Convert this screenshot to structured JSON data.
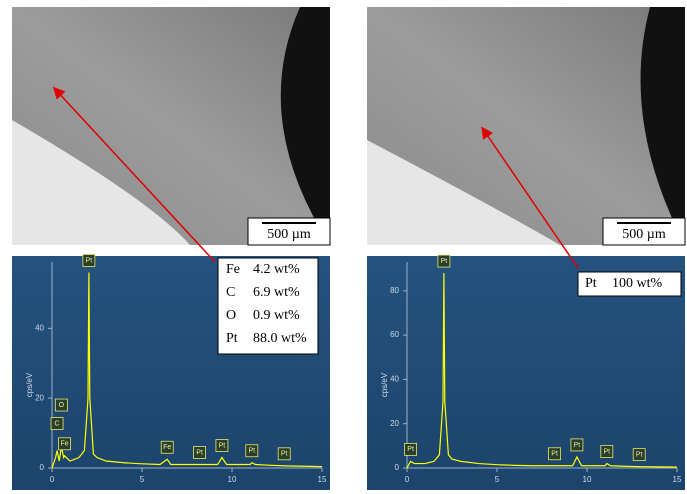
{
  "images": [
    {
      "scale_bar": "500 µm"
    },
    {
      "scale_bar": "500 µm"
    }
  ],
  "compositions": [
    [
      [
        "Fe",
        "4.2 wt%"
      ],
      [
        "C",
        "6.9 wt%"
      ],
      [
        "O",
        "0.9 wt%"
      ],
      [
        "Pt",
        "88.0 wt%"
      ]
    ],
    [
      [
        "Pt",
        "100 wt%"
      ]
    ]
  ],
  "chart_data": [
    {
      "type": "line",
      "ylabel": "cps/eV",
      "color": "#ffff00",
      "x": [
        0,
        0.2,
        0.28,
        0.4,
        0.52,
        0.65,
        0.7,
        1.0,
        1.5,
        1.8,
        2.0,
        2.05,
        2.1,
        2.3,
        2.5,
        3,
        4,
        5,
        6,
        6.4,
        6.6,
        7,
        8,
        9.2,
        9.44,
        9.7,
        10,
        11,
        11.1,
        11.3,
        12,
        13,
        14,
        15
      ],
      "values": [
        0,
        3,
        5,
        2,
        6,
        3,
        3.5,
        2,
        3,
        5,
        20,
        56,
        20,
        4,
        3,
        2,
        1.5,
        1.2,
        1,
        2.5,
        1,
        1,
        1,
        1,
        3,
        1,
        1,
        1,
        1.5,
        1,
        0.8,
        0.6,
        0.5,
        0.4
      ],
      "xlim": [
        0,
        15
      ],
      "ylim": [
        0,
        59
      ],
      "xticks": [
        0,
        5,
        10,
        15
      ],
      "yticks": [
        0,
        20,
        40
      ],
      "annotations": [
        {
          "text": "Pt",
          "x": 2.05
        },
        {
          "text": "Fe",
          "x": 0.7
        },
        {
          "text": "C",
          "x": 0.28
        },
        {
          "text": "O",
          "x": 0.52
        },
        {
          "text": "Fe",
          "x": 6.4
        },
        {
          "text": "Pt",
          "x": 8.2
        },
        {
          "text": "Pt",
          "x": 9.44
        },
        {
          "text": "Pt",
          "x": 11.1
        },
        {
          "text": "Pt",
          "x": 12.9
        }
      ]
    },
    {
      "type": "line",
      "ylabel": "cps/eV",
      "color": "#ffff00",
      "x": [
        0,
        0.2,
        0.4,
        0.7,
        1.0,
        1.5,
        1.8,
        2.0,
        2.05,
        2.1,
        2.3,
        2.5,
        3,
        4,
        5,
        6,
        7,
        8,
        9.2,
        9.44,
        9.7,
        10,
        11,
        11.1,
        11.3,
        12,
        13,
        14,
        15
      ],
      "values": [
        0,
        3,
        2,
        2,
        2,
        3,
        6,
        30,
        88,
        30,
        6,
        4,
        3,
        2,
        1.5,
        1.2,
        1,
        1,
        1,
        5,
        1,
        1,
        1,
        2,
        1,
        0.8,
        0.6,
        0.5,
        0.4
      ],
      "xlim": [
        0,
        15
      ],
      "ylim": [
        0,
        93
      ],
      "xticks": [
        0,
        5,
        10,
        15
      ],
      "yticks": [
        0,
        20,
        40,
        60,
        80
      ],
      "annotations": [
        {
          "text": "Pt",
          "x": 0.2
        },
        {
          "text": "Pt",
          "x": 2.05
        },
        {
          "text": "Pt",
          "x": 8.2
        },
        {
          "text": "Pt",
          "x": 9.44
        },
        {
          "text": "Pt",
          "x": 11.1
        },
        {
          "text": "Pt",
          "x": 12.9
        }
      ]
    }
  ]
}
